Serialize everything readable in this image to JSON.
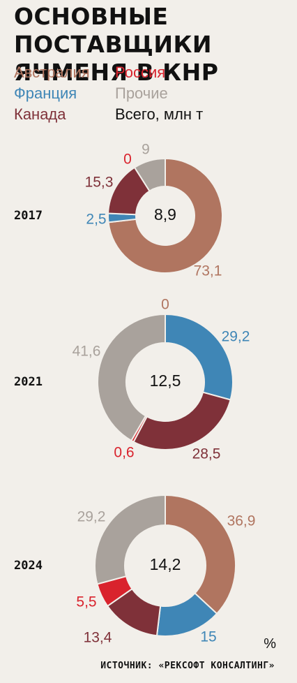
{
  "title_line1": "ОСНОВНЫЕ ПОСТАВЩИКИ",
  "title_line2": "ЯЧМЕНЯ В КНР",
  "legend": [
    {
      "label": "Австралия",
      "color": "#b07560"
    },
    {
      "label": "Россия",
      "color": "#d9232d"
    },
    {
      "label": "Франция",
      "color": "#3f86b6"
    },
    {
      "label": "Прочие",
      "color": "#a9a29c"
    },
    {
      "label": "Канада",
      "color": "#7f3139"
    },
    {
      "label": "Всего, млн т",
      "color": "#111111"
    }
  ],
  "unit": "%",
  "source": "ИСТОЧНИК: «РЕКСОФТ КОНСАЛТИНГ»",
  "chart_data": [
    {
      "type": "pie",
      "year": "2017",
      "total": "8,9",
      "slices": [
        {
          "name": "Австралия",
          "value": 73.1,
          "label": "73,1"
        },
        {
          "name": "Франция",
          "value": 2.5,
          "label": "2,5"
        },
        {
          "name": "Канада",
          "value": 15.3,
          "label": "15,3"
        },
        {
          "name": "Россия",
          "value": 0,
          "label": "0"
        },
        {
          "name": "Прочие",
          "value": 9,
          "label": "9"
        }
      ]
    },
    {
      "type": "pie",
      "year": "2021",
      "total": "12,5",
      "slices": [
        {
          "name": "Франция",
          "value": 29.2,
          "label": "29,2"
        },
        {
          "name": "Канада",
          "value": 28.5,
          "label": "28,5"
        },
        {
          "name": "Россия",
          "value": 0.6,
          "label": "0,6"
        },
        {
          "name": "Прочие",
          "value": 41.6,
          "label": "41,6"
        },
        {
          "name": "Австралия",
          "value": 0,
          "label": "0"
        }
      ]
    },
    {
      "type": "pie",
      "year": "2024",
      "total": "14,2",
      "slices": [
        {
          "name": "Австралия",
          "value": 36.9,
          "label": "36,9"
        },
        {
          "name": "Франция",
          "value": 15,
          "label": "15"
        },
        {
          "name": "Канада",
          "value": 13.4,
          "label": "13,4"
        },
        {
          "name": "Россия",
          "value": 5.5,
          "label": "5,5"
        },
        {
          "name": "Прочие",
          "value": 29.2,
          "label": "29,2"
        }
      ]
    }
  ]
}
